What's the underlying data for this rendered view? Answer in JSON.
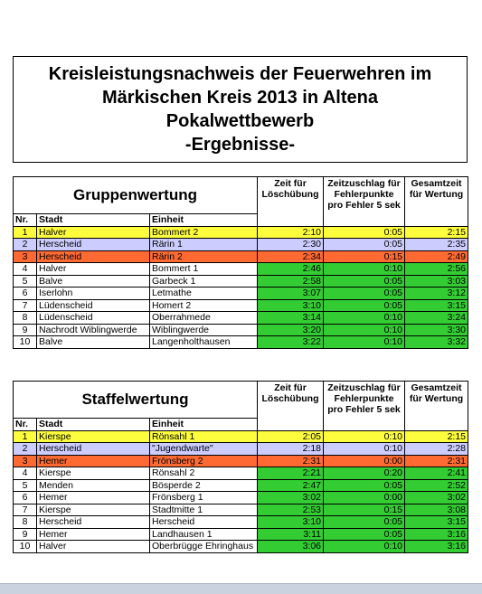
{
  "title": [
    "Kreisleistungsnachweis der Feuerwehren im",
    "Märkischen Kreis 2013 in Altena",
    "Pokalwettbewerb",
    "-Ergebnisse-"
  ],
  "tables": [
    {
      "title": "Gruppenwertung",
      "headers": [
        "Zeit für Löschübung",
        "Zeitzuschlag für Fehlerpunkte pro Fehler 5 sek",
        "Gesamtzeit für Wertung"
      ],
      "columns": [
        "Nr.",
        "Stadt",
        "Einheit"
      ],
      "rows": [
        [
          "1",
          "Halver",
          "Bommert 2",
          "2:10",
          "0:05",
          "2:15"
        ],
        [
          "2",
          "Herscheid",
          "Rärin 1",
          "2:30",
          "0:05",
          "2:35"
        ],
        [
          "3",
          "Herscheid",
          "Rärin 2",
          "2:34",
          "0:15",
          "2:49"
        ],
        [
          "4",
          "Halver",
          "Bommert 1",
          "2:46",
          "0:10",
          "2:56"
        ],
        [
          "5",
          "Balve",
          "Garbeck 1",
          "2:58",
          "0:05",
          "3:03"
        ],
        [
          "6",
          "Iserlohn",
          "Letmathe",
          "3:07",
          "0:05",
          "3:12"
        ],
        [
          "7",
          "Lüdenscheid",
          "Homert 2",
          "3:10",
          "0:05",
          "3:15"
        ],
        [
          "8",
          "Lüdenscheid",
          "Oberrahmede",
          "3:14",
          "0:10",
          "3:24"
        ],
        [
          "9",
          "Nachrodt Wiblingwerde",
          "Wiblingwerde",
          "3:20",
          "0:10",
          "3:30"
        ],
        [
          "10",
          "Balve",
          "Langenholthausen",
          "3:22",
          "0:10",
          "3:32"
        ]
      ]
    },
    {
      "title": "Staffelwertung",
      "headers": [
        "Zeit für Löschübung",
        "Zeitzuschlag für Fehlerpunkte pro Fehler 5 sek",
        "Gesamtzeit für Wertung"
      ],
      "columns": [
        "Nr.",
        "Stadt",
        "Einheit"
      ],
      "rows": [
        [
          "1",
          "Kierspe",
          "Rönsahl 1",
          "2:05",
          "0:10",
          "2:15"
        ],
        [
          "2",
          "Herscheid",
          "\"Jugendwarte\"",
          "2:18",
          "0:10",
          "2:28"
        ],
        [
          "3",
          "Hemer",
          "Frönsberg 2",
          "2:31",
          "0:00",
          "2:31"
        ],
        [
          "4",
          "Kierspe",
          "Rönsahl 2",
          "2:21",
          "0:20",
          "2:41"
        ],
        [
          "5",
          "Menden",
          "Bösperde 2",
          "2:47",
          "0:05",
          "2:52"
        ],
        [
          "6",
          "Hemer",
          "Frönsberg 1",
          "3:02",
          "0:00",
          "3:02"
        ],
        [
          "7",
          "Kierspe",
          "Stadtmitte 1",
          "2:53",
          "0:15",
          "3:08"
        ],
        [
          "8",
          "Herscheid",
          "Herscheid",
          "3:10",
          "0:05",
          "3:15"
        ],
        [
          "9",
          "Hemer",
          "Landhausen 1",
          "3:11",
          "0:05",
          "3:16"
        ],
        [
          "10",
          "Halver",
          "Oberbrügge Ehringhaus",
          "3:06",
          "0:10",
          "3:16"
        ]
      ]
    }
  ]
}
